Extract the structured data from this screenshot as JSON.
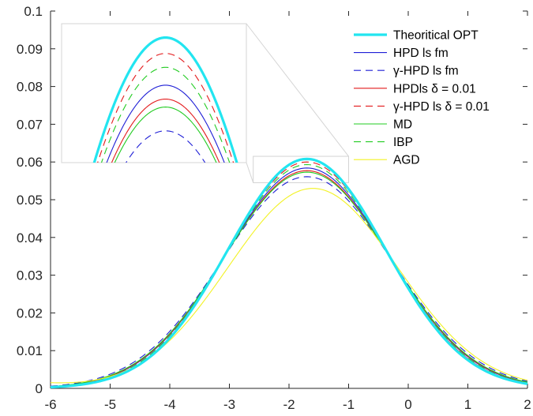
{
  "chart_data": {
    "type": "line",
    "title": "",
    "xlabel": "",
    "ylabel": "",
    "xlim": [
      -6,
      2
    ],
    "ylim": [
      0,
      0.1
    ],
    "xticks": [
      -6,
      -5,
      -4,
      -3,
      -2,
      -1,
      0,
      1,
      2
    ],
    "xtick_labels": [
      "-6",
      "-5",
      "-4",
      "-3",
      "-2",
      "-1",
      "0",
      "1",
      "2"
    ],
    "yticks": [
      0,
      0.01,
      0.02,
      0.03,
      0.04,
      0.05,
      0.06,
      0.07,
      0.08,
      0.09,
      0.1
    ],
    "ytick_labels": [
      "0",
      "0.01",
      "0.02",
      "0.03",
      "0.04",
      "0.05",
      "0.06",
      "0.07",
      "0.08",
      "0.09",
      "0.1"
    ],
    "grid": false,
    "legend_position": "top-right",
    "zoom_inset": {
      "x_range": [
        -2.6,
        -1.0
      ],
      "y_range": [
        0.0545,
        0.0615
      ],
      "location": "top-left"
    },
    "series": [
      {
        "name": "Theoritical OPT",
        "color": "#22e5f0",
        "dash": "solid",
        "width": "thick",
        "peak_x": -1.7,
        "peak_y": 0.0608,
        "sigma": 1.32,
        "x": [
          -6,
          -5.5,
          -5,
          -4.5,
          -4,
          -3.5,
          -3,
          -2.5,
          -2,
          -1.7,
          -1.5,
          -1,
          -0.5,
          0,
          0.5,
          1,
          1.5,
          2
        ],
        "y": [
          0.0003,
          0.0016,
          0.0035,
          0.0077,
          0.0151,
          0.0264,
          0.0402,
          0.0524,
          0.0593,
          0.0608,
          0.0594,
          0.0518,
          0.0394,
          0.0263,
          0.0152,
          0.0076,
          0.0034,
          0.0013
        ]
      },
      {
        "name": "HPD ls fm",
        "color": "#1f1fd6",
        "dash": "solid",
        "width": "thin",
        "peak_x": -1.7,
        "peak_y": 0.0584,
        "sigma": 1.37,
        "x": [
          -6,
          -5,
          -4,
          -3,
          -2,
          -1.7,
          -1,
          0,
          1,
          2
        ],
        "y": [
          0.0005,
          0.004,
          0.0157,
          0.0398,
          0.057,
          0.0584,
          0.051,
          0.0268,
          0.0081,
          0.0015
        ]
      },
      {
        "name": "γ-HPD ls fm",
        "color": "#1f1fd6",
        "dash": "dashed",
        "width": "thin",
        "peak_x": -1.7,
        "peak_y": 0.0561,
        "sigma": 1.42,
        "x": [
          -6,
          -5,
          -4,
          -3,
          -2,
          -1.7,
          -1,
          0,
          1,
          2
        ],
        "y": [
          0.0008,
          0.0048,
          0.017,
          0.0394,
          0.0549,
          0.0561,
          0.0495,
          0.0274,
          0.0089,
          0.0018
        ]
      },
      {
        "name": "HPDls δ = 0.01",
        "color": "#e31a1c",
        "dash": "solid",
        "width": "thin",
        "peak_x": -1.7,
        "peak_y": 0.0577,
        "sigma": 1.38,
        "x": [
          -6,
          -5,
          -4,
          -3,
          -2,
          -1.7,
          -1,
          0,
          1,
          2
        ],
        "y": [
          0.0005,
          0.0041,
          0.0158,
          0.0396,
          0.0563,
          0.0577,
          0.0505,
          0.0268,
          0.0082,
          0.0016
        ]
      },
      {
        "name": "γ-HPD ls δ = 0.01",
        "color": "#e31a1c",
        "dash": "dashed",
        "width": "thin",
        "peak_x": -1.7,
        "peak_y": 0.06,
        "sigma": 1.34,
        "x": [
          -6,
          -5,
          -4,
          -3,
          -2,
          -1.7,
          -1,
          0,
          1,
          2
        ],
        "y": [
          0.0004,
          0.0037,
          0.0153,
          0.04,
          0.0585,
          0.06,
          0.0518,
          0.0267,
          0.0078,
          0.0014
        ]
      },
      {
        "name": "MD",
        "color": "#22cc22",
        "dash": "solid",
        "width": "thin",
        "peak_x": -1.7,
        "peak_y": 0.0573,
        "sigma": 1.39,
        "x": [
          -6,
          -5,
          -4,
          -3,
          -2,
          -1.7,
          -1,
          0,
          1,
          2
        ],
        "y": [
          0.0006,
          0.0042,
          0.016,
          0.0396,
          0.0559,
          0.0573,
          0.0503,
          0.0269,
          0.0083,
          0.0016
        ]
      },
      {
        "name": "IBP",
        "color": "#22cc22",
        "dash": "dashed",
        "width": "thin",
        "peak_x": -1.7,
        "peak_y": 0.0593,
        "sigma": 1.35,
        "x": [
          -6,
          -5,
          -4,
          -3,
          -2,
          -1.7,
          -1,
          0,
          1,
          2
        ],
        "y": [
          0.0004,
          0.0038,
          0.0154,
          0.0398,
          0.0579,
          0.0593,
          0.0514,
          0.0267,
          0.0079,
          0.0014
        ]
      },
      {
        "name": "AGD",
        "color": "#f2f224",
        "dash": "solid",
        "width": "thin",
        "peak_x": -1.6,
        "peak_y": 0.053,
        "sigma": 1.42,
        "x": [
          -6,
          -5,
          -4,
          -3,
          -2,
          -1.6,
          -1,
          0,
          1,
          2
        ],
        "y": [
          0.0024,
          0.0048,
          0.0119,
          0.0334,
          0.0511,
          0.053,
          0.0484,
          0.0281,
          0.0098,
          0.0026
        ]
      }
    ]
  }
}
